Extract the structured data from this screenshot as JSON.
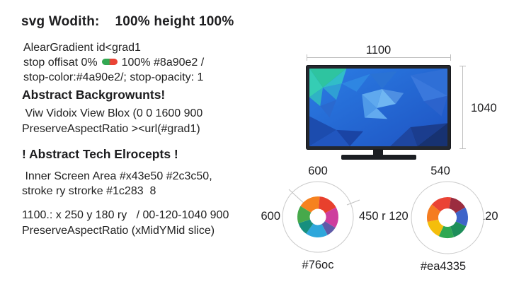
{
  "page": {
    "background": "#ffffff",
    "text_color": "#1d1d1f",
    "line_color": "#bdbdbd"
  },
  "left_panel": {
    "title": "svg Wodith:    100% height 100%",
    "gradient_spec": {
      "line1": "AlearGradient id<grad1",
      "line2_before_icon": "stop offisat 0%",
      "line2_after_icon": "100% #8a90e2 /",
      "line3": "stop-color:#4a90e2/; stop-opacity: 1",
      "pill_icon_colors": {
        "left": "#33a852",
        "right": "#ea4335"
      }
    },
    "background_section": {
      "heading": "Abstract Backgrowunts!",
      "line1": " Viw Vidoix View Blox (0 0 1600 900",
      "line2": "PreserveAspectRatio ><url(#grad1)"
    },
    "tech_section": {
      "heading": "! Abstract Tech Elrocepts !",
      "line1": " Inner Screen Area #x43e50 #2c3c50,",
      "line2": "stroke ry strorke #1c283  8"
    },
    "rect_spec": {
      "line1": "1100.: x 250 y 180 ry   / 00-120-1040 900",
      "line2": "PreserveAspectRatio (xMidYMid slice)"
    }
  },
  "tv_diagram": {
    "width_label": "1100",
    "height_label": "1040",
    "frame_color": "#23272e",
    "screen_palette": [
      "#2ec4a0",
      "#31bdc9",
      "#2e86e2",
      "#5fa9ee",
      "#6fb6f2",
      "#2a72d4",
      "#1e53c2",
      "#173271"
    ]
  },
  "wheels": [
    {
      "top_label": "600",
      "left_label": "600",
      "right_label": "450 r 120",
      "caption": "#76oc",
      "outer_r": 50,
      "donut_r": 29,
      "hole_r": 11.5,
      "segments": [
        {
          "color": "#f6821f",
          "from": 302,
          "to": 365
        },
        {
          "color": "#e8402d",
          "from": 5,
          "to": 62
        },
        {
          "color": "#ce3d9e",
          "from": 62,
          "to": 122
        },
        {
          "color": "#5f5aa8",
          "from": 122,
          "to": 152
        },
        {
          "color": "#2ea7db",
          "from": 152,
          "to": 215
        },
        {
          "color": "#178f7e",
          "from": 215,
          "to": 252
        },
        {
          "color": "#47a94b",
          "from": 252,
          "to": 302
        }
      ]
    },
    {
      "top_label": "540",
      "right_label": "120",
      "caption": "#ea4335",
      "outer_r": 51,
      "donut_r": 29,
      "hole_r": 13,
      "segments": [
        {
          "color": "#ea4335",
          "from": -50,
          "to": 10
        },
        {
          "color": "#9b2c3f",
          "from": 10,
          "to": 60
        },
        {
          "color": "#3e64c9",
          "from": 60,
          "to": 115
        },
        {
          "color": "#1e8e5a",
          "from": 115,
          "to": 162
        },
        {
          "color": "#2fa852",
          "from": 162,
          "to": 205
        },
        {
          "color": "#f4be0c",
          "from": 205,
          "to": 258
        },
        {
          "color": "#f57c20",
          "from": 258,
          "to": 310
        }
      ]
    }
  ]
}
